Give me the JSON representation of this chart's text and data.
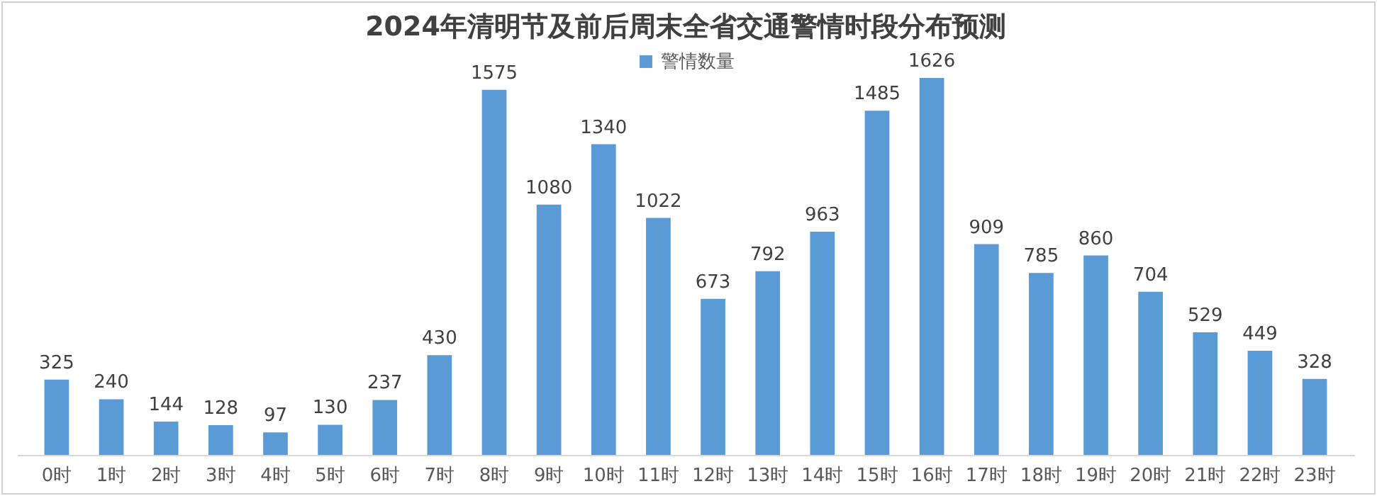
{
  "chart_data": {
    "type": "bar",
    "title": "2024年清明节及前后周末全省交通警情时段分布预测",
    "categories": [
      "0时",
      "1时",
      "2时",
      "3时",
      "4时",
      "5时",
      "6时",
      "7时",
      "8时",
      "9时",
      "10时",
      "11时",
      "12时",
      "13时",
      "14时",
      "15时",
      "16时",
      "17时",
      "18时",
      "19时",
      "20时",
      "21时",
      "22时",
      "23时"
    ],
    "series": [
      {
        "name": "警情数量",
        "color": "#5b9bd5",
        "values": [
          325,
          240,
          144,
          128,
          97,
          130,
          237,
          430,
          1575,
          1080,
          1340,
          1022,
          673,
          792,
          963,
          1485,
          1626,
          909,
          785,
          860,
          704,
          529,
          449,
          328
        ]
      }
    ],
    "data_labels": true,
    "legend": "top",
    "tick_labels": "x"
  }
}
